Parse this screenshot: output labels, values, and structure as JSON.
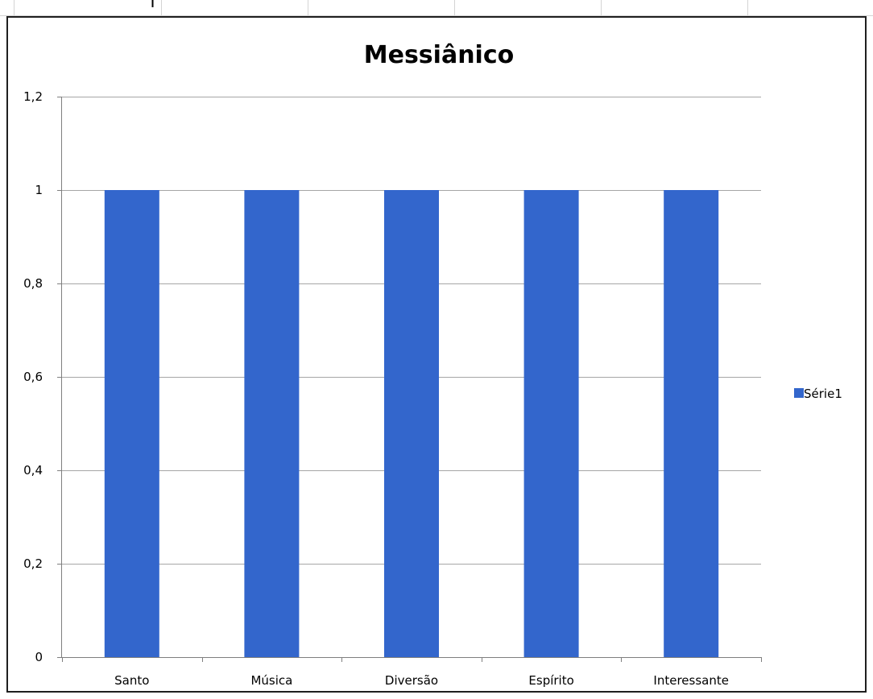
{
  "colors": {
    "bar": "#3366CC",
    "gridline": "#A6A6A6",
    "axis": "#7F7F7F",
    "frame": "#1F1F1F",
    "sheet_gridline": "#D4D4D4"
  },
  "chart_data": {
    "type": "bar",
    "title": "Messiânico",
    "xlabel": "",
    "ylabel": "",
    "categories": [
      "Santo",
      "Música",
      "Diversão",
      "Espírito",
      "Interessante"
    ],
    "series": [
      {
        "name": "Série1",
        "values": [
          1,
          1,
          1,
          1,
          1
        ]
      }
    ],
    "ylim": [
      0,
      1.2
    ],
    "yticks": [
      0,
      0.2,
      0.4,
      0.6,
      0.8,
      1,
      1.2
    ],
    "ytick_labels": [
      "0",
      "0,2",
      "0,4",
      "0,6",
      "0,8",
      "1",
      "1,2"
    ],
    "grid": true,
    "legend_position": "right"
  }
}
